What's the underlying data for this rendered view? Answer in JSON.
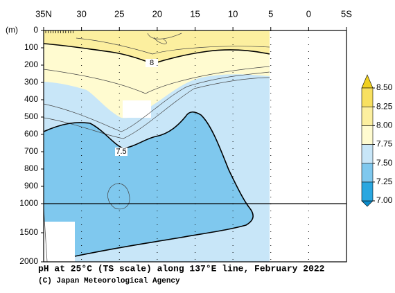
{
  "chart_data": {
    "type": "contour",
    "title": "pH at 25°C (TS scale) along 137°E line, February 2022",
    "credit": "(C) Japan Meteorological Agency",
    "ylabel": "(m)",
    "xlim": [
      35,
      -5
    ],
    "xticks": [
      {
        "value": 35,
        "label": "35N"
      },
      30,
      25,
      20,
      15,
      10,
      5,
      0,
      {
        "value": -5,
        "label": "5S"
      }
    ],
    "ylim": [
      0,
      2000
    ],
    "y_break": 1000,
    "yticks": [
      0,
      100,
      200,
      300,
      400,
      500,
      600,
      700,
      800,
      900,
      1000,
      1500,
      2000
    ],
    "contour_labels": [
      8,
      7.5
    ],
    "colorbar": {
      "ticks": [
        {
          "value": 7,
          "label": "7.00"
        },
        {
          "value": 7.25,
          "label": "7.25"
        },
        {
          "value": 7.5,
          "label": "7.50"
        },
        {
          "value": 7.75,
          "label": "7.75"
        },
        {
          "value": 8,
          "label": "8.00"
        },
        {
          "value": 8.25,
          "label": "8.25"
        },
        {
          "value": 8.5,
          "label": "8.50"
        }
      ],
      "colors": [
        "#0b8ccb",
        "#2aa7e0",
        "#7fc8ee",
        "#c8e6f8",
        "#fffbd0",
        "#fcef9f",
        "#f8e060",
        "#f0d020"
      ]
    }
  }
}
